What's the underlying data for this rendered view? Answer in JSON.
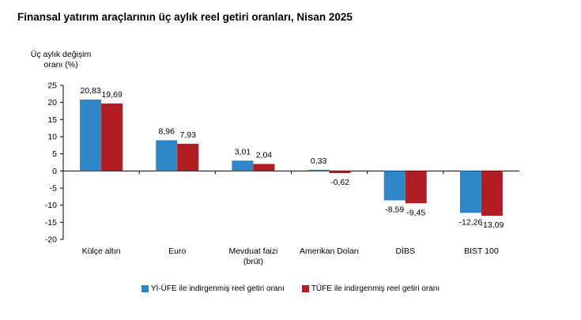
{
  "chart_data": {
    "type": "bar",
    "title": "Finansal yatırım araçlarının üç aylık reel getiri oranları, Nisan 2025",
    "ylabel_line1": "Üç aylık değişim",
    "ylabel_line2": "oranı (%)",
    "ylim": [
      -20,
      25
    ],
    "yticks": [
      "25",
      "20",
      "15",
      "10",
      "5",
      "0",
      "-5",
      "-10",
      "-15",
      "-20"
    ],
    "categories": [
      [
        "Külçe altın"
      ],
      [
        "Euro"
      ],
      [
        "Mevduat faizi",
        "(brüt)"
      ],
      [
        "Amerikan Doları"
      ],
      [
        "DİBS"
      ],
      [
        "BIST 100"
      ]
    ],
    "series": [
      {
        "name": "Yİ-ÜFE ile indirgenmiş reel getiri oranı",
        "color": "#2E86C8",
        "values": [
          20.83,
          8.96,
          3.01,
          0.33,
          -8.59,
          -12.26
        ],
        "labels": [
          "20,83",
          "8,96",
          "3,01",
          "0,33",
          "-8,59",
          "-12,26"
        ]
      },
      {
        "name": "TÜFE ile indirgenmiş reel getiri oranı",
        "color": "#B01E23",
        "values": [
          19.69,
          7.93,
          2.04,
          -0.62,
          -9.45,
          -13.09
        ],
        "labels": [
          "19,69",
          "7,93",
          "2,04",
          "-0,62",
          "-9,45",
          "-13,09"
        ]
      }
    ],
    "grid": false,
    "legend_position": "bottom"
  }
}
